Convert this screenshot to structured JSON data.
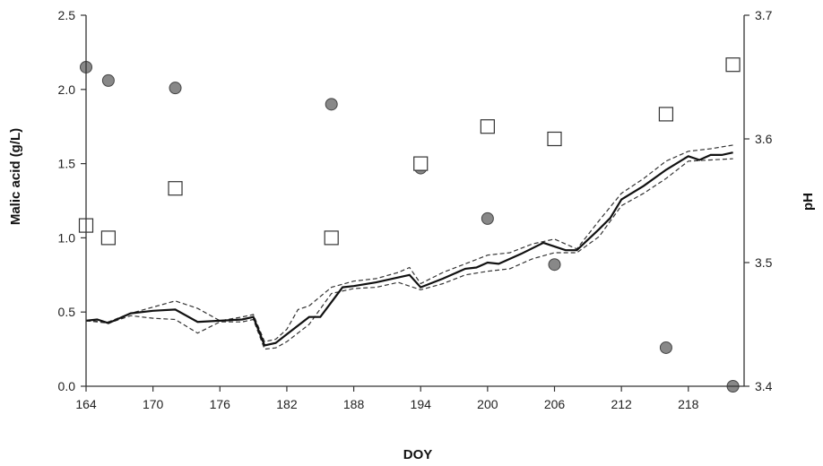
{
  "chart_data": {
    "type": "line",
    "xlabel": "DOY",
    "ylabel": "Malic acid (g/L)",
    "y2label": "pH",
    "xlim": [
      164,
      223
    ],
    "ylim": [
      0,
      2.5
    ],
    "y2lim": [
      3.4,
      3.7
    ],
    "x_ticks": [
      "164",
      "170",
      "176",
      "182",
      "188",
      "194",
      "200",
      "206",
      "212",
      "218"
    ],
    "y_ticks": [
      "0.0",
      "0.5",
      "1.0",
      "1.5",
      "2.0",
      "2.5"
    ],
    "y2_ticks": [
      "3.4",
      "3.5",
      "3.6",
      "3.7"
    ],
    "legend": "none",
    "grid": false,
    "series": [
      {
        "kind": "scatter",
        "axis": "left",
        "marker": "circle",
        "color": "#888888",
        "points": [
          [
            164,
            2.15
          ],
          [
            166,
            2.06
          ],
          [
            172,
            2.01
          ],
          [
            186,
            1.9
          ],
          [
            194,
            1.47
          ],
          [
            200,
            1.13
          ],
          [
            206,
            0.82
          ],
          [
            216,
            0.26
          ],
          [
            222,
            0.0
          ]
        ]
      },
      {
        "kind": "scatter",
        "axis": "right",
        "marker": "square",
        "color": "#ffffff",
        "points": [
          [
            164,
            3.53
          ],
          [
            166,
            3.52
          ],
          [
            172,
            3.56
          ],
          [
            186,
            3.52
          ],
          [
            194,
            3.58
          ],
          [
            200,
            3.61
          ],
          [
            206,
            3.6
          ],
          [
            216,
            3.62
          ],
          [
            222,
            3.66
          ]
        ]
      },
      {
        "kind": "line",
        "axis": "right",
        "style": "solid",
        "color": "#111111",
        "points": [
          [
            164,
            3.453
          ],
          [
            165,
            3.454
          ],
          [
            166,
            3.451
          ],
          [
            167,
            3.455
          ],
          [
            168,
            3.459
          ],
          [
            170,
            3.461
          ],
          [
            172,
            3.462
          ],
          [
            174,
            3.452
          ],
          [
            176,
            3.453
          ],
          [
            178,
            3.454
          ],
          [
            179,
            3.456
          ],
          [
            180,
            3.433
          ],
          [
            181,
            3.435
          ],
          [
            182,
            3.442
          ],
          [
            184,
            3.456
          ],
          [
            185,
            3.456
          ],
          [
            187,
            3.48
          ],
          [
            188,
            3.481
          ],
          [
            190,
            3.484
          ],
          [
            192,
            3.488
          ],
          [
            193,
            3.49
          ],
          [
            194,
            3.48
          ],
          [
            196,
            3.487
          ],
          [
            198,
            3.495
          ],
          [
            199,
            3.496
          ],
          [
            200,
            3.5
          ],
          [
            201,
            3.499
          ],
          [
            203,
            3.507
          ],
          [
            205,
            3.516
          ],
          [
            206,
            3.513
          ],
          [
            207,
            3.51
          ],
          [
            208,
            3.51
          ],
          [
            210,
            3.527
          ],
          [
            211,
            3.536
          ],
          [
            212,
            3.551
          ],
          [
            214,
            3.562
          ],
          [
            216,
            3.575
          ],
          [
            218,
            3.586
          ],
          [
            219,
            3.583
          ],
          [
            220,
            3.587
          ],
          [
            221,
            3.587
          ],
          [
            222,
            3.589
          ]
        ]
      },
      {
        "kind": "line",
        "axis": "right",
        "style": "dashed",
        "color": "#333333",
        "points": [
          [
            164,
            3.453
          ],
          [
            166,
            3.452
          ],
          [
            168,
            3.459
          ],
          [
            170,
            3.464
          ],
          [
            172,
            3.469
          ],
          [
            174,
            3.463
          ],
          [
            176,
            3.453
          ],
          [
            178,
            3.456
          ],
          [
            179,
            3.458
          ],
          [
            180,
            3.436
          ],
          [
            181,
            3.438
          ],
          [
            182,
            3.446
          ],
          [
            183,
            3.462
          ],
          [
            184,
            3.465
          ],
          [
            186,
            3.48
          ],
          [
            188,
            3.485
          ],
          [
            190,
            3.487
          ],
          [
            192,
            3.492
          ],
          [
            193,
            3.496
          ],
          [
            194,
            3.483
          ],
          [
            196,
            3.492
          ],
          [
            198,
            3.499
          ],
          [
            200,
            3.506
          ],
          [
            202,
            3.508
          ],
          [
            204,
            3.515
          ],
          [
            206,
            3.519
          ],
          [
            208,
            3.511
          ],
          [
            210,
            3.534
          ],
          [
            212,
            3.556
          ],
          [
            214,
            3.568
          ],
          [
            216,
            3.582
          ],
          [
            218,
            3.59
          ],
          [
            220,
            3.592
          ],
          [
            222,
            3.595
          ]
        ]
      },
      {
        "kind": "line",
        "axis": "right",
        "style": "dashed",
        "color": "#333333",
        "points": [
          [
            164,
            3.453
          ],
          [
            166,
            3.451
          ],
          [
            168,
            3.457
          ],
          [
            170,
            3.455
          ],
          [
            172,
            3.454
          ],
          [
            174,
            3.443
          ],
          [
            176,
            3.452
          ],
          [
            178,
            3.452
          ],
          [
            179,
            3.454
          ],
          [
            180,
            3.43
          ],
          [
            181,
            3.431
          ],
          [
            182,
            3.436
          ],
          [
            184,
            3.45
          ],
          [
            186,
            3.475
          ],
          [
            188,
            3.479
          ],
          [
            190,
            3.48
          ],
          [
            192,
            3.484
          ],
          [
            194,
            3.478
          ],
          [
            196,
            3.483
          ],
          [
            198,
            3.49
          ],
          [
            200,
            3.493
          ],
          [
            202,
            3.495
          ],
          [
            204,
            3.503
          ],
          [
            206,
            3.508
          ],
          [
            208,
            3.508
          ],
          [
            210,
            3.521
          ],
          [
            212,
            3.546
          ],
          [
            214,
            3.556
          ],
          [
            216,
            3.568
          ],
          [
            218,
            3.582
          ],
          [
            220,
            3.583
          ],
          [
            222,
            3.584
          ]
        ]
      }
    ]
  }
}
